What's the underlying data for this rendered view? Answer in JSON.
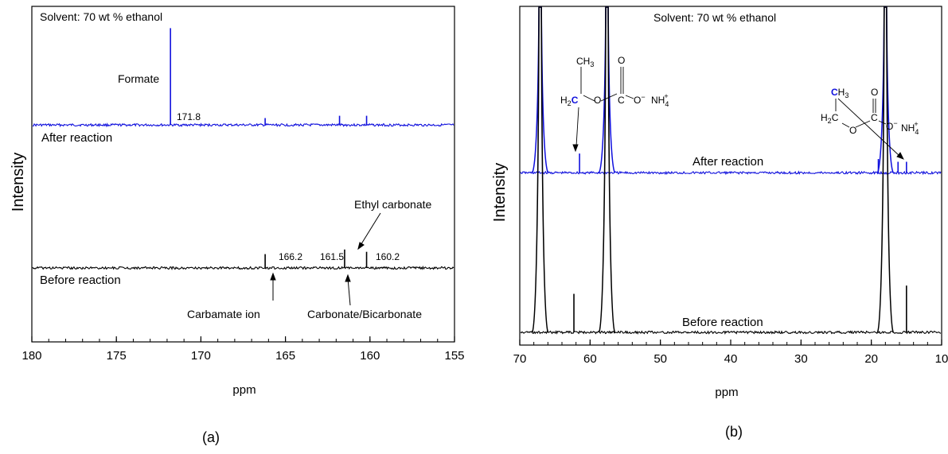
{
  "chart_data": [
    {
      "type": "line",
      "panel_label": "(a)",
      "title": "",
      "annotation_top": "Solvent: 70 wt % ethanol",
      "xlabel": "ppm",
      "ylabel": "Intensity",
      "x_reversed": true,
      "xlim": [
        180,
        155
      ],
      "xticks": [
        "180",
        "175",
        "170",
        "165",
        "160",
        "155"
      ],
      "yticks_shown": false,
      "series": [
        {
          "name": "After reaction",
          "color": "#1010dd",
          "baseline": 0.62,
          "peaks": [
            [
              171.8,
              0.42
            ],
            [
              166.2,
              0.03
            ],
            [
              161.8,
              0.04
            ],
            [
              160.2,
              0.04
            ]
          ]
        },
        {
          "name": "Before reaction",
          "color": "#000000",
          "baseline": 0.0,
          "peaks": [
            [
              166.2,
              0.06
            ],
            [
              161.5,
              0.08
            ],
            [
              160.2,
              0.07
            ]
          ]
        }
      ],
      "peak_labels": [
        {
          "text": "171.8",
          "x": 171.8
        },
        {
          "text": "166.2",
          "x": 166.2
        },
        {
          "text": "161.5",
          "x": 161.5
        },
        {
          "text": "160.2",
          "x": 160.2
        }
      ],
      "annotations": [
        "Formate",
        "Ethyl carbonate",
        "Carbamate ion",
        "Carbonate/Bicarbonate"
      ]
    },
    {
      "type": "line",
      "panel_label": "(b)",
      "title": "",
      "annotation_top": "Solvent: 70 wt % ethanol",
      "xlabel": "ppm",
      "ylabel": "Intensity",
      "x_reversed": true,
      "xlim": [
        70,
        10
      ],
      "xticks": [
        "70",
        "60",
        "50",
        "40",
        "30",
        "20",
        "10"
      ],
      "yticks_shown": false,
      "series": [
        {
          "name": "After reaction",
          "color": "#1010dd",
          "baseline": 0.58,
          "peaks": [
            [
              67.1,
              1.2
            ],
            [
              61.5,
              0.07
            ],
            [
              57.6,
              1.2
            ],
            [
              18.0,
              1.2
            ],
            [
              19.0,
              0.05
            ],
            [
              16.2,
              0.04
            ],
            [
              15.0,
              0.04
            ]
          ]
        },
        {
          "name": "Before reaction",
          "color": "#000000",
          "baseline": 0.0,
          "peaks": [
            [
              67.1,
              1.2
            ],
            [
              62.3,
              0.14
            ],
            [
              57.6,
              1.2
            ],
            [
              18.0,
              1.2
            ],
            [
              15.0,
              0.17
            ]
          ]
        }
      ],
      "chem_labels": {
        "left": [
          "CH",
          "3",
          "O",
          "H",
          "2",
          "C",
          "C",
          "O",
          "O",
          "−",
          "NH",
          "4",
          "+"
        ],
        "right": [
          "C",
          "H",
          "3",
          "O",
          "H",
          "2",
          "C",
          "C",
          "O",
          "O",
          "−",
          "NH",
          "4",
          "+"
        ]
      }
    }
  ]
}
